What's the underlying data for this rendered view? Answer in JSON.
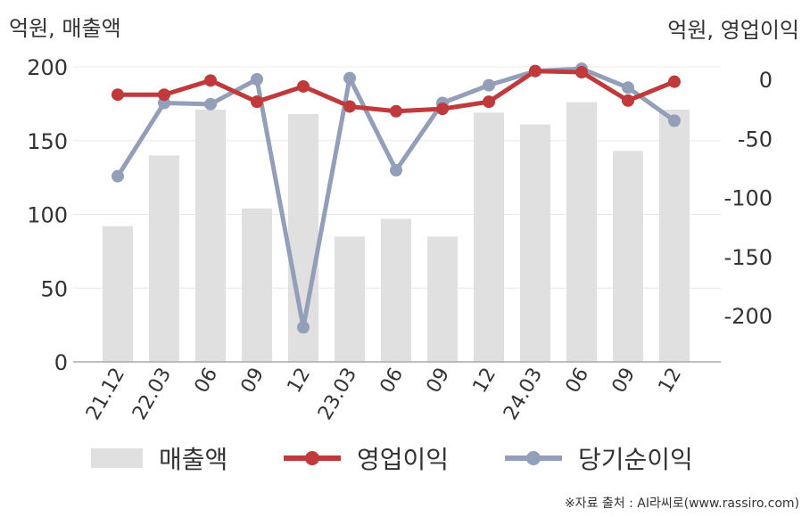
{
  "units": {
    "left": "억원, 매출액",
    "right": "억원, 영업이익"
  },
  "legend": {
    "revenue": "매출액",
    "op_income": "영업이익",
    "net_income": "당기순이익"
  },
  "source": "※자료 출처 : AI라씨로(www.rassiro.com)",
  "colors": {
    "revenue": "#e0e0e0",
    "op_income": "#c0393b",
    "net_income": "#939fb8",
    "grid": "#e8e8e8",
    "axis": "#aaaaaa"
  },
  "chart_data": {
    "type": "bar",
    "categories": [
      "21.12",
      "22.03",
      "06",
      "09",
      "12",
      "23.03",
      "06",
      "09",
      "12",
      "24.03",
      "06",
      "09",
      "12"
    ],
    "y_left": {
      "ylim": [
        0,
        200
      ],
      "ticks": [
        0,
        50,
        100,
        150,
        200
      ]
    },
    "y_right": {
      "ylim": [
        -240,
        10
      ],
      "ticks": [
        0,
        -50,
        -100,
        -150,
        -200
      ]
    },
    "series": [
      {
        "name": "매출액",
        "type": "bar",
        "axis": "left",
        "values": [
          92,
          140,
          171,
          104,
          168,
          85,
          97,
          85,
          169,
          161,
          176,
          143,
          171
        ]
      },
      {
        "name": "영업이익",
        "type": "line",
        "axis": "right",
        "values": [
          -13,
          -13,
          -1,
          -19,
          -6,
          -23,
          -27,
          -25,
          -19,
          7,
          6,
          -18,
          -2
        ]
      },
      {
        "name": "당기순이익",
        "type": "line",
        "axis": "right",
        "values": [
          -82,
          -20,
          -21,
          0,
          -210,
          1,
          -77,
          -20,
          -5,
          7,
          9,
          -7,
          -35
        ]
      }
    ],
    "grid": true,
    "legend_position": "bottom"
  }
}
